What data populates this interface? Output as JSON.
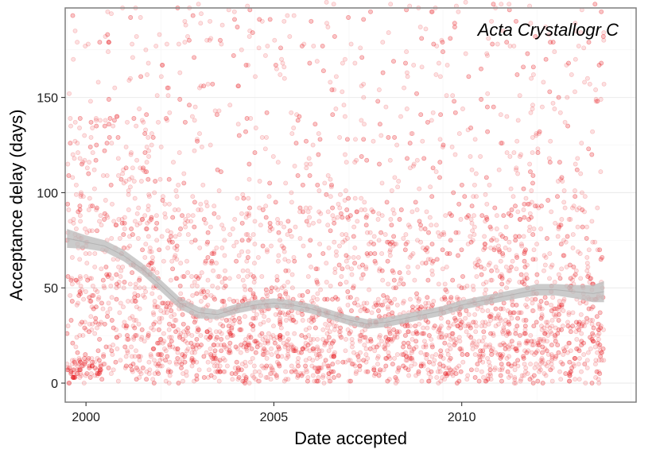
{
  "chart_data": {
    "type": "scatter",
    "title": "",
    "annotation": "Acta Crystallogr C",
    "xlabel": "Date accepted",
    "ylabel": "Acceptance delay (days)",
    "x_ticks": [
      "2000",
      "2005",
      "2010"
    ],
    "y_ticks": [
      "0",
      "50",
      "100",
      "150"
    ],
    "xlim": [
      "1999-06-13",
      "2014-08-23"
    ],
    "ylim": [
      -10,
      197
    ],
    "grid": true,
    "legend": "none",
    "point_color": "#e8000b",
    "point_alpha": 0.12,
    "x_range_points": [
      "1999-07-01",
      "2013-10-15"
    ],
    "points_note_count_approx": 4200,
    "smooth_series": {
      "name": "",
      "color": "#bebebe",
      "x": [
        "1999-07-01",
        "2000-01-01",
        "2000-07-01",
        "2001-01-01",
        "2001-07-01",
        "2002-01-01",
        "2002-07-01",
        "2003-01-01",
        "2003-07-01",
        "2004-01-01",
        "2004-07-01",
        "2005-01-01",
        "2005-07-01",
        "2006-01-01",
        "2006-07-01",
        "2007-01-01",
        "2007-07-01",
        "2008-01-01",
        "2008-07-01",
        "2009-01-01",
        "2009-07-01",
        "2010-01-01",
        "2010-07-01",
        "2011-01-01",
        "2011-07-01",
        "2012-01-01",
        "2012-07-01",
        "2013-01-01",
        "2013-07-01",
        "2013-10-15"
      ],
      "y": [
        76,
        74,
        72,
        67,
        60,
        51,
        42,
        37,
        36,
        39,
        41,
        42,
        41,
        39,
        36,
        33,
        31,
        32,
        34,
        36,
        38,
        41,
        43,
        45,
        47,
        49,
        49,
        48,
        47,
        48
      ],
      "band_half_width": [
        5,
        3.5,
        3,
        3,
        3,
        3,
        3,
        3,
        2.5,
        2.5,
        2.5,
        2.5,
        2.5,
        2.5,
        2.5,
        2.5,
        2.5,
        2.5,
        2.5,
        2.5,
        2.5,
        2.5,
        2.5,
        2.5,
        2.5,
        3,
        3,
        3.5,
        4.5,
        5.5
      ]
    }
  }
}
